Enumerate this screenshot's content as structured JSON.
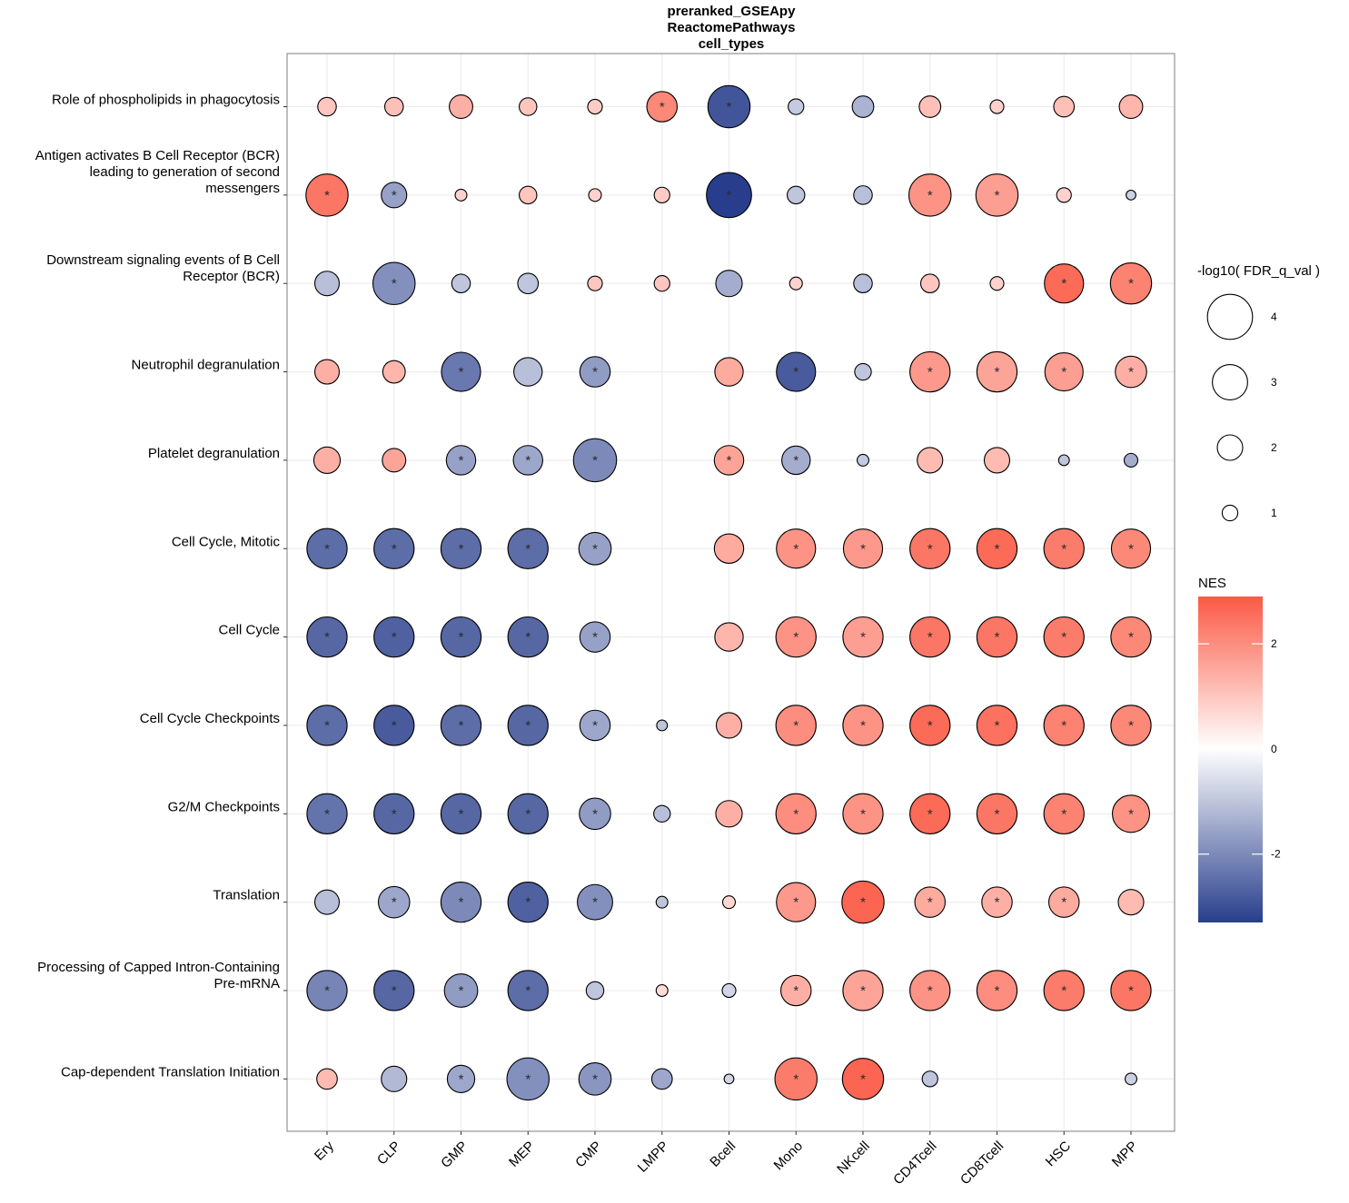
{
  "chart_data": {
    "type": "scatter",
    "subtype": "dot-plot",
    "title_lines": [
      "preranked_GSEApy",
      "ReactomePathways",
      "cell_types"
    ],
    "xlabel": "",
    "ylabel": "",
    "categories_x": [
      "Ery",
      "CLP",
      "GMP",
      "MEP",
      "CMP",
      "LMPP",
      "Bcell",
      "Mono",
      "NKcell",
      "CD4Tcell",
      "CD8Tcell",
      "HSC",
      "MPP"
    ],
    "pathways": [
      {
        "lines": [
          "Role of phospholipids in phagocytosis"
        ]
      },
      {
        "lines": [
          "Antigen activates B Cell Receptor (BCR)",
          "leading to generation of second",
          "messengers"
        ]
      },
      {
        "lines": [
          "Downstream signaling events of B Cell",
          "Receptor (BCR)"
        ]
      },
      {
        "lines": [
          "Neutrophil degranulation"
        ]
      },
      {
        "lines": [
          "Platelet degranulation"
        ]
      },
      {
        "lines": [
          "Cell Cycle, Mitotic"
        ]
      },
      {
        "lines": [
          "Cell Cycle"
        ]
      },
      {
        "lines": [
          "Cell Cycle Checkpoints"
        ]
      },
      {
        "lines": [
          "G2/M Checkpoints"
        ]
      },
      {
        "lines": [
          "Translation"
        ]
      },
      {
        "lines": [
          "Processing of Capped Intron-Containing",
          "Pre-mRNA"
        ]
      },
      {
        "lines": [
          "Cap-dependent Translation Initiation"
        ]
      }
    ],
    "point_fields": [
      "nes",
      "neg_log10_fdr",
      "significant"
    ],
    "points": [
      [
        [
          1.0,
          1.3,
          false
        ],
        [
          1.1,
          1.3,
          false
        ],
        [
          1.4,
          1.8,
          false
        ],
        [
          1.0,
          1.2,
          false
        ],
        [
          0.9,
          0.9,
          false
        ],
        [
          2.1,
          2.5,
          true
        ],
        [
          -2.9,
          3.7,
          true
        ],
        [
          -0.9,
          1.0,
          false
        ],
        [
          -1.3,
          1.6,
          false
        ],
        [
          1.1,
          1.6,
          false
        ],
        [
          0.8,
          0.8,
          false
        ],
        [
          1.1,
          1.5,
          false
        ],
        [
          1.3,
          1.8,
          false
        ]
      ],
      [
        [
          2.4,
          3.7,
          true
        ],
        [
          -1.6,
          2.0,
          true
        ],
        [
          0.8,
          0.6,
          false
        ],
        [
          1.0,
          1.2,
          false
        ],
        [
          0.8,
          0.7,
          false
        ],
        [
          0.9,
          1.0,
          false
        ],
        [
          -3.3,
          4.0,
          true
        ],
        [
          -1.0,
          1.2,
          false
        ],
        [
          -1.1,
          1.3,
          false
        ],
        [
          1.9,
          3.7,
          true
        ],
        [
          1.7,
          3.7,
          true
        ],
        [
          0.8,
          0.9,
          false
        ],
        [
          -0.8,
          0.4,
          false
        ]
      ],
      [
        [
          -1.1,
          1.9,
          false
        ],
        [
          -1.9,
          3.7,
          true
        ],
        [
          -1.0,
          1.3,
          false
        ],
        [
          -1.0,
          1.5,
          false
        ],
        [
          1.0,
          0.9,
          false
        ],
        [
          1.0,
          1.0,
          false
        ],
        [
          -1.4,
          2.1,
          false
        ],
        [
          0.8,
          0.7,
          false
        ],
        [
          -1.1,
          1.3,
          false
        ],
        [
          1.0,
          1.3,
          false
        ],
        [
          0.8,
          0.8,
          false
        ],
        [
          2.6,
          3.4,
          true
        ],
        [
          2.2,
          3.6,
          true
        ]
      ],
      [
        [
          1.4,
          1.9,
          false
        ],
        [
          1.3,
          1.7,
          false
        ],
        [
          -2.3,
          3.4,
          true
        ],
        [
          -1.1,
          2.3,
          false
        ],
        [
          -1.7,
          2.5,
          true
        ],
        [
          0,
          0,
          false
        ],
        [
          1.5,
          2.3,
          false
        ],
        [
          -2.8,
          3.4,
          true
        ],
        [
          -1.0,
          1.1,
          false
        ],
        [
          1.8,
          3.5,
          true
        ],
        [
          1.6,
          3.5,
          true
        ],
        [
          1.7,
          3.3,
          true
        ],
        [
          1.4,
          2.6,
          true
        ]
      ],
      [
        [
          1.4,
          2.1,
          false
        ],
        [
          1.6,
          1.8,
          false
        ],
        [
          -1.6,
          2.4,
          true
        ],
        [
          -1.5,
          2.4,
          true
        ],
        [
          -2.0,
          3.8,
          true
        ],
        [
          0,
          0,
          false
        ],
        [
          1.6,
          2.4,
          true
        ],
        [
          -1.4,
          2.3,
          true
        ],
        [
          -0.9,
          0.6,
          false
        ],
        [
          1.2,
          2.0,
          false
        ],
        [
          1.2,
          2.0,
          false
        ],
        [
          -1.0,
          0.5,
          false
        ],
        [
          -1.4,
          0.8,
          false
        ]
      ],
      [
        [
          -2.5,
          3.5,
          true
        ],
        [
          -2.5,
          3.5,
          true
        ],
        [
          -2.5,
          3.5,
          true
        ],
        [
          -2.5,
          3.5,
          true
        ],
        [
          -1.6,
          2.7,
          true
        ],
        [
          0,
          0,
          false
        ],
        [
          1.5,
          2.4,
          false
        ],
        [
          1.9,
          3.4,
          true
        ],
        [
          1.8,
          3.4,
          true
        ],
        [
          2.4,
          3.5,
          true
        ],
        [
          2.6,
          3.5,
          true
        ],
        [
          2.3,
          3.5,
          true
        ],
        [
          2.1,
          3.4,
          true
        ]
      ],
      [
        [
          -2.6,
          3.5,
          true
        ],
        [
          -2.7,
          3.5,
          true
        ],
        [
          -2.6,
          3.5,
          true
        ],
        [
          -2.6,
          3.5,
          true
        ],
        [
          -1.6,
          2.5,
          true
        ],
        [
          0,
          0,
          false
        ],
        [
          1.3,
          2.3,
          false
        ],
        [
          1.9,
          3.5,
          true
        ],
        [
          1.7,
          3.5,
          true
        ],
        [
          2.4,
          3.5,
          true
        ],
        [
          2.4,
          3.5,
          true
        ],
        [
          2.3,
          3.5,
          true
        ],
        [
          2.1,
          3.5,
          true
        ]
      ],
      [
        [
          -2.5,
          3.5,
          true
        ],
        [
          -2.8,
          3.5,
          true
        ],
        [
          -2.5,
          3.5,
          true
        ],
        [
          -2.6,
          3.5,
          true
        ],
        [
          -1.5,
          2.5,
          true
        ],
        [
          -1.0,
          0.5,
          false
        ],
        [
          1.4,
          2.0,
          false
        ],
        [
          2.0,
          3.5,
          true
        ],
        [
          1.9,
          3.5,
          true
        ],
        [
          2.6,
          3.5,
          true
        ],
        [
          2.5,
          3.5,
          true
        ],
        [
          2.2,
          3.5,
          true
        ],
        [
          2.1,
          3.5,
          true
        ]
      ],
      [
        [
          -2.4,
          3.5,
          true
        ],
        [
          -2.6,
          3.5,
          true
        ],
        [
          -2.6,
          3.5,
          true
        ],
        [
          -2.6,
          3.5,
          true
        ],
        [
          -1.7,
          2.6,
          true
        ],
        [
          -1.1,
          1.1,
          false
        ],
        [
          1.4,
          2.1,
          false
        ],
        [
          2.0,
          3.5,
          true
        ],
        [
          1.9,
          3.5,
          true
        ],
        [
          2.6,
          3.5,
          true
        ],
        [
          2.4,
          3.5,
          true
        ],
        [
          2.2,
          3.5,
          true
        ],
        [
          1.9,
          3.2,
          true
        ]
      ],
      [
        [
          -1.1,
          1.9,
          false
        ],
        [
          -1.5,
          2.6,
          true
        ],
        [
          -2.0,
          3.5,
          true
        ],
        [
          -2.7,
          3.5,
          true
        ],
        [
          -1.9,
          3.0,
          true
        ],
        [
          -1.0,
          0.6,
          false
        ],
        [
          0.7,
          0.7,
          false
        ],
        [
          1.8,
          3.4,
          true
        ],
        [
          2.7,
          3.7,
          true
        ],
        [
          1.5,
          2.5,
          true
        ],
        [
          1.4,
          2.5,
          true
        ],
        [
          1.5,
          2.5,
          true
        ],
        [
          1.2,
          2.0,
          false
        ]
      ],
      [
        [
          -2.1,
          3.5,
          true
        ],
        [
          -2.6,
          3.5,
          true
        ],
        [
          -1.7,
          2.8,
          true
        ],
        [
          -2.5,
          3.5,
          true
        ],
        [
          -1.0,
          1.2,
          false
        ],
        [
          0.6,
          0.6,
          false
        ],
        [
          -0.7,
          0.8,
          false
        ],
        [
          1.4,
          2.5,
          true
        ],
        [
          1.6,
          3.5,
          true
        ],
        [
          1.9,
          3.5,
          true
        ],
        [
          2.0,
          3.5,
          true
        ],
        [
          2.3,
          3.5,
          true
        ],
        [
          2.4,
          3.5,
          true
        ]
      ],
      [
        [
          1.2,
          1.5,
          false
        ],
        [
          -1.2,
          2.0,
          false
        ],
        [
          -1.5,
          2.2,
          true
        ],
        [
          -1.9,
          3.7,
          true
        ],
        [
          -1.8,
          2.7,
          true
        ],
        [
          -1.5,
          1.5,
          false
        ],
        [
          -0.7,
          0.4,
          false
        ],
        [
          2.3,
          3.7,
          true
        ],
        [
          2.7,
          3.6,
          true
        ],
        [
          -1.0,
          1.0,
          false
        ],
        [
          0,
          0,
          false
        ],
        [
          0,
          0,
          false
        ],
        [
          -0.8,
          0.6,
          false
        ]
      ]
    ],
    "size_legend": {
      "title": "-log10( FDR_q_val )",
      "values": [
        4,
        3,
        2,
        1
      ]
    },
    "color_legend": {
      "title": "NES",
      "ticks": [
        2,
        0,
        -2
      ],
      "range": [
        -3.3,
        2.9
      ]
    },
    "colors": {
      "low": "#283e8c",
      "mid": "#ffffff",
      "high": "#fb5a45",
      "grid": "#ebebeb",
      "panel_border": "#7f7f7f"
    },
    "grid": true,
    "legend_position": "right"
  }
}
